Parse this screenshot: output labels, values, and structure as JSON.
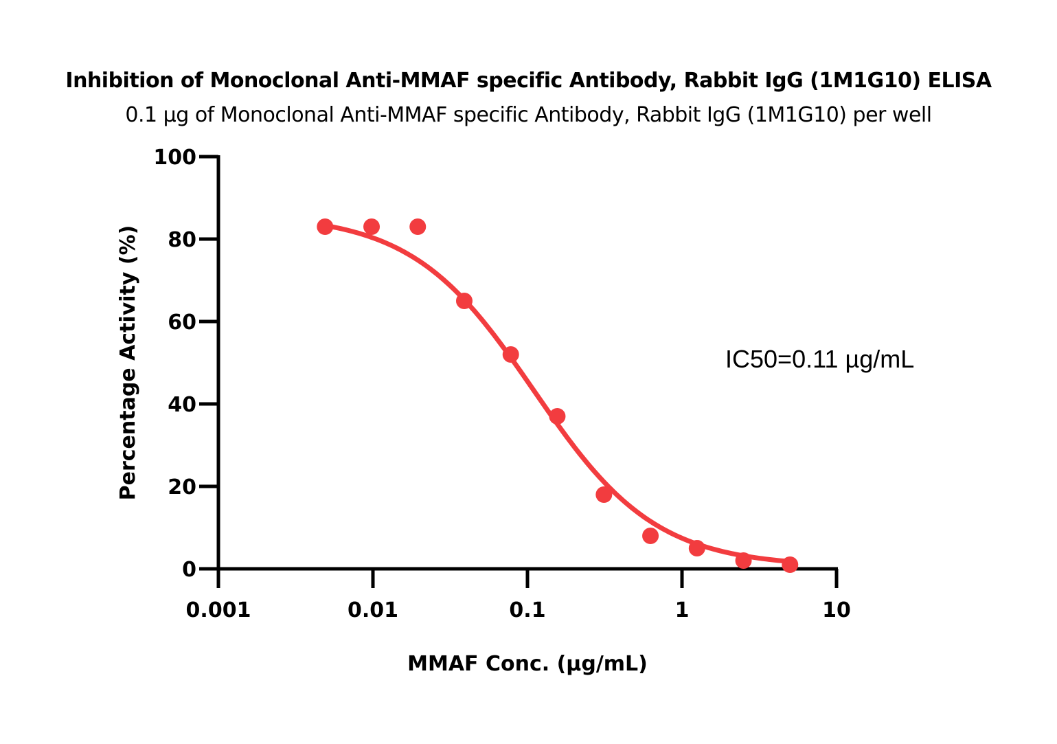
{
  "chart_data": {
    "type": "scatter",
    "title": "Inhibition of Monoclonal Anti-MMAF specific Antibody, Rabbit IgG (1M1G10) ELISA",
    "subtitle": "0.1 µg of Monoclonal Anti-MMAF specific Antibody, Rabbit IgG (1M1G10) per well",
    "xlabel": "MMAF Conc. (µg/mL)",
    "ylabel": "Percentage Activity (%)",
    "xscale": "log",
    "xlim": [
      0.001,
      10
    ],
    "ylim": [
      0,
      100
    ],
    "xticks": [
      0.001,
      0.01,
      0.1,
      1,
      10
    ],
    "xtick_labels": [
      "0.001",
      "0.01",
      "0.1",
      "1",
      "10"
    ],
    "yticks": [
      0,
      20,
      40,
      60,
      80,
      100
    ],
    "ytick_labels": [
      "0",
      "20",
      "40",
      "60",
      "80",
      "100"
    ],
    "grid": false,
    "series": [
      {
        "name": "Percentage Activity",
        "color": "#f23c3f",
        "x": [
          0.0049,
          0.0098,
          0.0195,
          0.039,
          0.078,
          0.156,
          0.3125,
          0.625,
          1.25,
          2.5,
          5
        ],
        "y": [
          83,
          83,
          83,
          65,
          52,
          37,
          18,
          8,
          5,
          2,
          1
        ]
      }
    ],
    "fit": {
      "type": "4PL",
      "top": 86,
      "bottom": 0.5,
      "ic50": 0.11,
      "hill": 1.1,
      "x_range": [
        0.0049,
        5
      ],
      "color": "#f23c3f"
    },
    "annotations": [
      {
        "text": "IC50=0.11 µg/mL"
      }
    ]
  }
}
